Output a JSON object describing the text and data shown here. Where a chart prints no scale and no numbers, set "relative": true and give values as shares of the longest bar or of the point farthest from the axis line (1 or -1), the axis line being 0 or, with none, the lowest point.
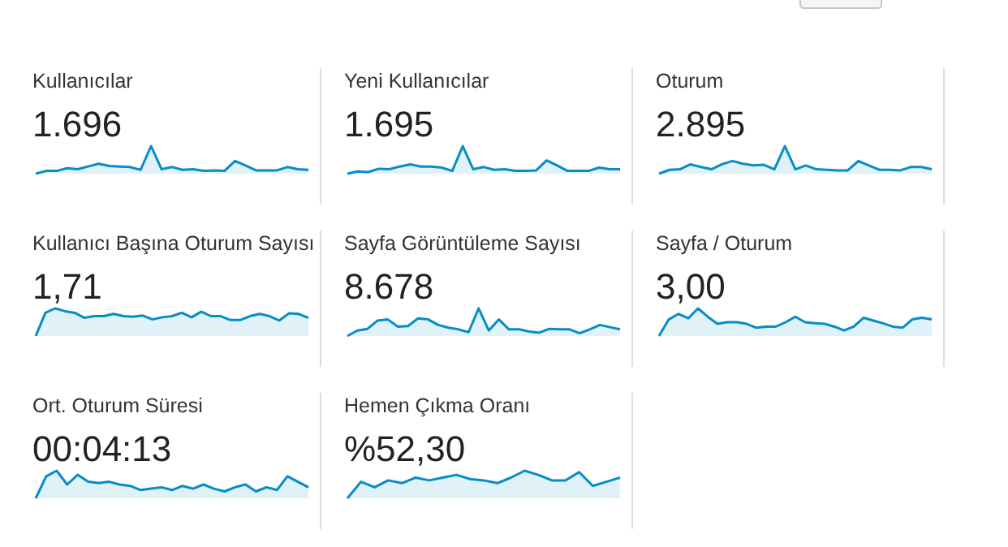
{
  "chart_data": [
    {
      "type": "area",
      "title": "Kullanıcılar",
      "annotations": [
        "1.696"
      ],
      "relative": true,
      "color": "#058dc7",
      "categories": [
        null,
        null,
        null,
        null,
        null,
        null,
        null,
        null,
        null,
        null,
        null,
        null,
        null,
        null,
        null,
        null,
        null,
        null,
        null,
        null,
        null,
        null,
        null,
        null,
        null,
        null,
        null
      ],
      "values": [
        0,
        0.1,
        0.1,
        0.2,
        0.16,
        0.26,
        0.36,
        0.28,
        0.26,
        0.24,
        0.14,
        1,
        0.16,
        0.24,
        0.14,
        0.16,
        0.1,
        0.12,
        0.1,
        0.46,
        0.3,
        0.12,
        0.12,
        0.12,
        0.24,
        0.16,
        0.14
      ]
    },
    {
      "type": "area",
      "title": "Yeni Kullanıcılar",
      "annotations": [
        "1.695"
      ],
      "relative": true,
      "color": "#058dc7",
      "categories": [
        null,
        null,
        null,
        null,
        null,
        null,
        null,
        null,
        null,
        null,
        null,
        null,
        null,
        null,
        null,
        null,
        null,
        null,
        null,
        null,
        null,
        null,
        null,
        null,
        null,
        null,
        null
      ],
      "values": [
        0,
        0.08,
        0.06,
        0.18,
        0.16,
        0.26,
        0.34,
        0.26,
        0.26,
        0.22,
        0.1,
        1,
        0.16,
        0.24,
        0.14,
        0.16,
        0.1,
        0.1,
        0.12,
        0.48,
        0.3,
        0.1,
        0.1,
        0.1,
        0.22,
        0.16,
        0.16
      ]
    },
    {
      "type": "area",
      "title": "Oturum",
      "annotations": [
        "2.895"
      ],
      "relative": true,
      "color": "#058dc7",
      "categories": [
        null,
        null,
        null,
        null,
        null,
        null,
        null,
        null,
        null,
        null,
        null,
        null,
        null,
        null,
        null,
        null,
        null,
        null,
        null,
        null,
        null,
        null,
        null,
        null,
        null,
        null,
        null
      ],
      "values": [
        0,
        0.14,
        0.16,
        0.34,
        0.24,
        0.16,
        0.34,
        0.46,
        0.36,
        0.3,
        0.32,
        0.16,
        1,
        0.16,
        0.3,
        0.16,
        0.14,
        0.12,
        0.12,
        0.46,
        0.3,
        0.14,
        0.14,
        0.12,
        0.24,
        0.24,
        0.16
      ]
    },
    {
      "type": "area",
      "title": "Kullanıcı Başına Oturum Sayısı",
      "annotations": [
        "1,71"
      ],
      "relative": true,
      "color": "#058dc7",
      "categories": [
        null,
        null,
        null,
        null,
        null,
        null,
        null,
        null,
        null,
        null,
        null,
        null,
        null,
        null,
        null,
        null,
        null,
        null,
        null,
        null,
        null,
        null,
        null,
        null,
        null,
        null,
        null,
        null,
        null
      ],
      "values": [
        0,
        0.84,
        1,
        0.9,
        0.84,
        0.66,
        0.72,
        0.72,
        0.8,
        0.72,
        0.7,
        0.74,
        0.6,
        0.68,
        0.72,
        0.84,
        0.68,
        0.88,
        0.72,
        0.72,
        0.58,
        0.58,
        0.72,
        0.8,
        0.72,
        0.56,
        0.82,
        0.8,
        0.66
      ]
    },
    {
      "type": "area",
      "title": "Sayfa Görüntüleme Sayısı",
      "annotations": [
        "8.678"
      ],
      "relative": true,
      "color": "#058dc7",
      "categories": [
        null,
        null,
        null,
        null,
        null,
        null,
        null,
        null,
        null,
        null,
        null,
        null,
        null,
        null,
        null,
        null,
        null,
        null,
        null,
        null,
        null,
        null,
        null,
        null,
        null,
        null,
        null,
        null
      ],
      "values": [
        0,
        0.2,
        0.26,
        0.56,
        0.6,
        0.34,
        0.36,
        0.64,
        0.6,
        0.4,
        0.3,
        0.24,
        0.14,
        1,
        0.2,
        0.6,
        0.24,
        0.24,
        0.16,
        0.12,
        0.26,
        0.24,
        0.24,
        0.1,
        0.24,
        0.4,
        0.32,
        0.24
      ]
    },
    {
      "type": "area",
      "title": "Sayfa / Oturum",
      "annotations": [
        "3,00"
      ],
      "relative": true,
      "color": "#058dc7",
      "categories": [
        null,
        null,
        null,
        null,
        null,
        null,
        null,
        null,
        null,
        null,
        null,
        null,
        null,
        null,
        null,
        null,
        null,
        null,
        null,
        null,
        null,
        null,
        null,
        null,
        null,
        null,
        null,
        null,
        null
      ],
      "values": [
        0,
        0.6,
        0.8,
        0.64,
        1,
        0.7,
        0.44,
        0.5,
        0.5,
        0.44,
        0.3,
        0.34,
        0.34,
        0.5,
        0.7,
        0.5,
        0.46,
        0.44,
        0.34,
        0.2,
        0.34,
        0.66,
        0.56,
        0.46,
        0.34,
        0.3,
        0.6,
        0.66,
        0.6
      ]
    },
    {
      "type": "area",
      "title": "Ort. Oturum Süresi",
      "annotations": [
        "00:04:13"
      ],
      "relative": true,
      "color": "#058dc7",
      "categories": [
        null,
        null,
        null,
        null,
        null,
        null,
        null,
        null,
        null,
        null,
        null,
        null,
        null,
        null,
        null,
        null,
        null,
        null,
        null,
        null,
        null,
        null,
        null,
        null,
        null,
        null,
        null
      ],
      "values": [
        0,
        0.8,
        1,
        0.5,
        0.85,
        0.6,
        0.55,
        0.6,
        0.5,
        0.45,
        0.3,
        0.35,
        0.4,
        0.3,
        0.45,
        0.35,
        0.5,
        0.35,
        0.25,
        0.4,
        0.5,
        0.25,
        0.4,
        0.3,
        0.8,
        0.6,
        0.4
      ]
    },
    {
      "type": "area",
      "title": "Hemen Çıkma Oranı",
      "annotations": [
        "%52,30"
      ],
      "relative": true,
      "color": "#058dc7",
      "categories": [
        null,
        null,
        null,
        null,
        null,
        null,
        null,
        null,
        null,
        null,
        null,
        null,
        null,
        null,
        null,
        null,
        null,
        null,
        null,
        null,
        null
      ],
      "values": [
        0,
        0.6,
        0.4,
        0.65,
        0.55,
        0.75,
        0.65,
        0.75,
        0.85,
        0.7,
        0.65,
        0.55,
        0.75,
        1,
        0.85,
        0.65,
        0.65,
        0.95,
        0.45,
        0.6,
        0.75
      ]
    }
  ]
}
